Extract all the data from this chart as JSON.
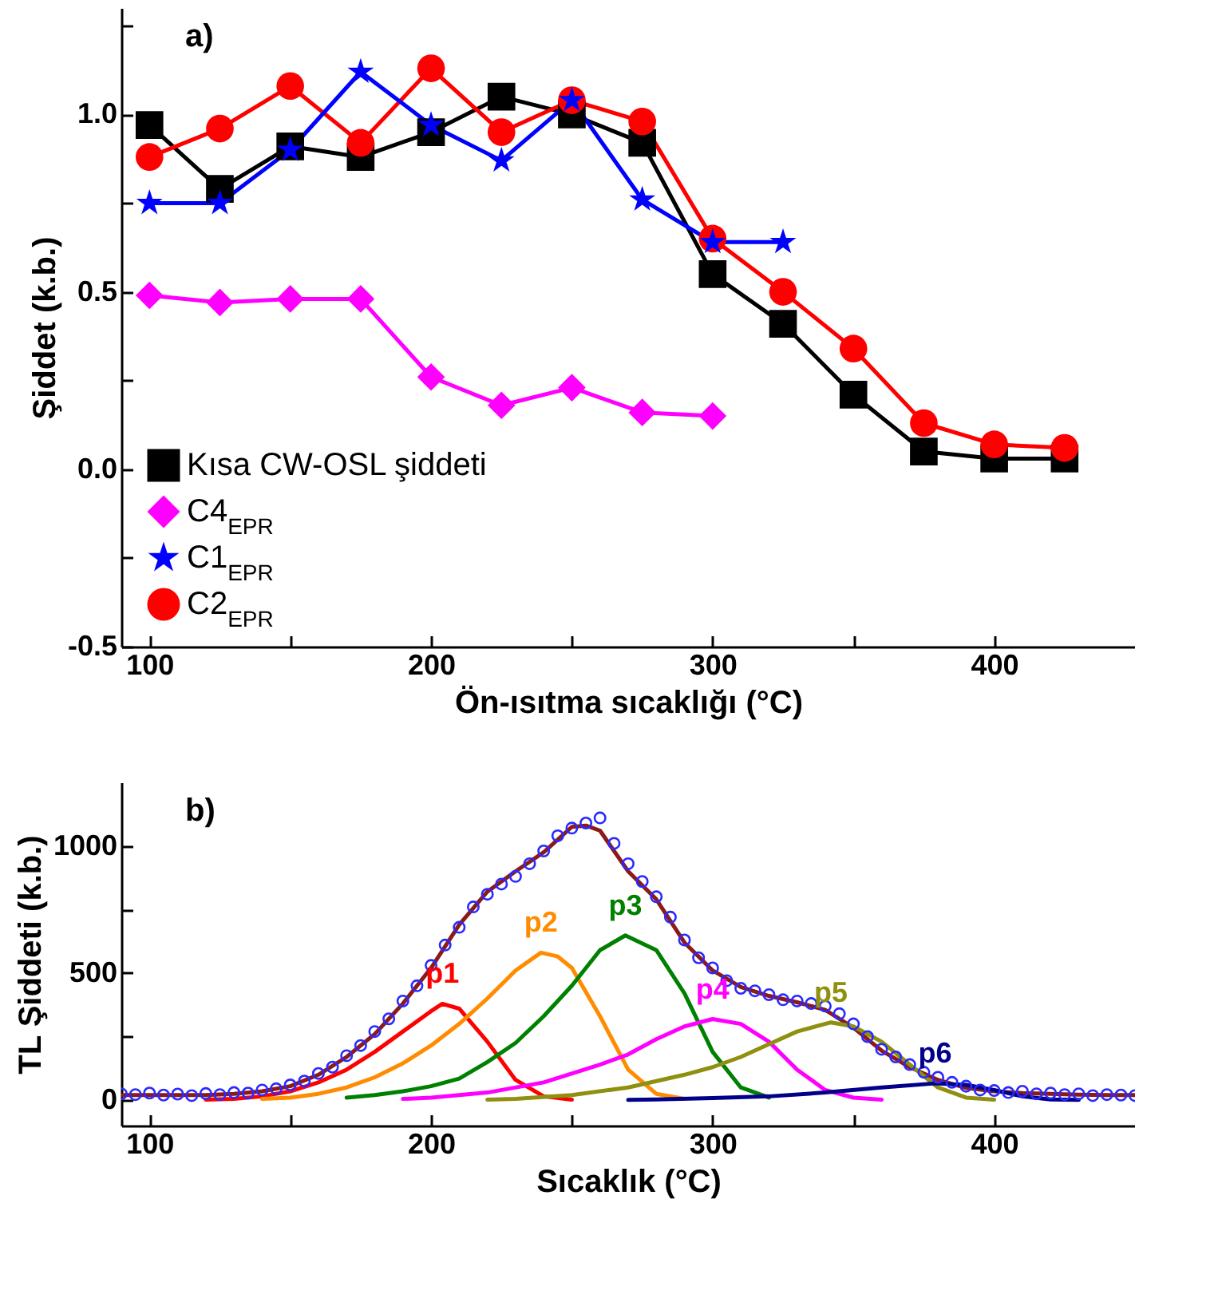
{
  "chart_data": [
    {
      "type": "line",
      "xlabel": "Ön-ısıtma sıcaklığı (°C)",
      "ylabel": "Şiddet (k.b.)",
      "annotations": [
        "a)"
      ],
      "x": [
        100,
        125,
        150,
        175,
        200,
        225,
        250,
        275,
        300,
        325,
        350,
        375,
        400,
        425
      ],
      "xlim": [
        90,
        450
      ],
      "xticks": [
        100,
        {
          "value": 150,
          "label": null
        },
        200,
        {
          "value": 250,
          "label": null
        },
        300,
        {
          "value": 350,
          "label": null
        },
        400
      ],
      "ylim": [
        -0.5,
        1.3
      ],
      "yticks": [
        -0.5,
        {
          "value": -0.25,
          "label": null
        },
        {
          "value": 0,
          "label": "0.0"
        },
        {
          "value": 0.25,
          "label": null
        },
        0.5,
        {
          "value": 0.75,
          "label": null
        },
        {
          "value": 1,
          "label": "1.0"
        },
        {
          "value": 1.25,
          "label": null
        }
      ],
      "grid": false,
      "legend": "bottom left",
      "line_style": "solid",
      "series": [
        {
          "name": "Kısa CW-OSL şiddeti",
          "color": "#000000",
          "marker": "square",
          "values": [
            0.97,
            0.79,
            0.91,
            0.88,
            0.95,
            1.05,
            1.0,
            0.92,
            0.55,
            0.41,
            0.21,
            0.05,
            0.03,
            0.03
          ]
        },
        {
          "name": "C4$_{EPR}$",
          "color": "#ff00ff",
          "marker": "diamond",
          "values": [
            0.49,
            0.47,
            0.48,
            0.48,
            0.26,
            0.18,
            0.23,
            0.16,
            0.15,
            null,
            null,
            null,
            null,
            null
          ]
        },
        {
          "name": "C1$_{EPR}$",
          "color": "#0000ff",
          "marker": "star",
          "values": [
            0.75,
            0.75,
            0.9,
            1.12,
            0.97,
            0.87,
            1.04,
            0.76,
            0.64,
            0.64,
            null,
            null,
            null,
            null
          ]
        },
        {
          "name": "C2$_{EPR}$",
          "color": "#ff0000",
          "marker": "circle",
          "values": [
            0.88,
            0.96,
            1.08,
            0.92,
            1.13,
            0.95,
            1.04,
            0.98,
            0.65,
            0.5,
            0.34,
            0.13,
            0.07,
            0.06
          ]
        }
      ]
    },
    {
      "type": "line",
      "xlabel": "Sıcaklık (°C)",
      "ylabel": "TL Şiddeti (k.b.)",
      "annotations": [
        "b)"
      ],
      "xlim": [
        90,
        450
      ],
      "xticks": [
        100,
        {
          "value": 150,
          "label": null
        },
        200,
        {
          "value": 250,
          "label": null
        },
        300,
        {
          "value": 350,
          "label": null
        },
        400
      ],
      "ylim": [
        -100,
        1250
      ],
      "yticks": [
        0,
        {
          "value": 250,
          "label": null
        },
        500,
        {
          "value": 750,
          "label": null
        },
        1000
      ],
      "grid": false,
      "legend": false,
      "series": [
        {
          "type": "scatter",
          "color": "#2a2aff",
          "marker": "circle",
          "x": [
            90,
            95,
            100,
            105,
            110,
            115,
            120,
            125,
            130,
            135,
            140,
            145,
            150,
            155,
            160,
            165,
            170,
            175,
            180,
            185,
            190,
            195,
            200,
            205,
            210,
            215,
            220,
            225,
            230,
            235,
            240,
            245,
            250,
            255,
            260,
            265,
            270,
            275,
            280,
            285,
            290,
            295,
            300,
            305,
            310,
            315,
            320,
            325,
            330,
            335,
            340,
            345,
            350,
            355,
            360,
            365,
            370,
            375,
            380,
            385,
            390,
            395,
            400,
            405,
            410,
            415,
            420,
            425,
            430,
            435,
            440,
            445,
            450
          ],
          "values": [
            25,
            22,
            28,
            20,
            24,
            18,
            26,
            22,
            30,
            28,
            40,
            45,
            60,
            75,
            105,
            130,
            175,
            215,
            270,
            320,
            390,
            450,
            530,
            610,
            680,
            760,
            810,
            850,
            880,
            930,
            980,
            1040,
            1070,
            1090,
            1110,
            1010,
            930,
            860,
            800,
            720,
            630,
            560,
            520,
            470,
            440,
            430,
            415,
            395,
            390,
            380,
            370,
            340,
            300,
            250,
            200,
            170,
            140,
            110,
            90,
            70,
            55,
            40,
            38,
            30,
            35,
            25,
            28,
            22,
            25,
            18,
            22,
            20,
            18
          ]
        },
        {
          "color": "#8b1a1a",
          "marker": "none",
          "x": [
            90,
            100,
            110,
            120,
            130,
            140,
            150,
            160,
            170,
            180,
            190,
            200,
            210,
            220,
            230,
            240,
            250,
            255,
            260,
            270,
            280,
            290,
            300,
            310,
            320,
            330,
            340,
            350,
            360,
            370,
            380,
            390,
            400,
            410,
            420,
            430,
            440,
            450
          ],
          "values": [
            20,
            20,
            20,
            20,
            25,
            35,
            55,
            100,
            170,
            260,
            380,
            520,
            690,
            820,
            900,
            975,
            1075,
            1080,
            1060,
            900,
            790,
            620,
            510,
            445,
            410,
            385,
            355,
            285,
            195,
            130,
            80,
            48,
            35,
            28,
            25,
            22,
            20,
            20
          ]
        },
        {
          "name": "p1",
          "color": "#ff0000",
          "marker": "none",
          "x": [
            120,
            130,
            140,
            150,
            160,
            170,
            180,
            190,
            200,
            204,
            210,
            220,
            230,
            240,
            250
          ],
          "values": [
            2,
            5,
            15,
            35,
            70,
            120,
            190,
            270,
            350,
            379,
            360,
            230,
            80,
            15,
            2
          ]
        },
        {
          "name": "p2",
          "color": "#ff8c00",
          "marker": "none",
          "x": [
            140,
            150,
            160,
            170,
            180,
            190,
            200,
            210,
            220,
            230,
            239,
            245,
            250,
            260,
            270,
            280,
            290
          ],
          "values": [
            5,
            10,
            25,
            50,
            90,
            145,
            215,
            300,
            400,
            510,
            580,
            565,
            520,
            330,
            120,
            25,
            5
          ]
        },
        {
          "name": "p3",
          "color": "#008000",
          "marker": "none",
          "x": [
            170,
            180,
            190,
            200,
            210,
            220,
            230,
            240,
            250,
            260,
            269,
            280,
            290,
            300,
            310,
            320
          ],
          "values": [
            10,
            20,
            35,
            55,
            85,
            150,
            225,
            330,
            450,
            590,
            648,
            590,
            420,
            190,
            50,
            10
          ]
        },
        {
          "name": "p4",
          "color": "#ff00ff",
          "marker": "none",
          "x": [
            190,
            200,
            220,
            240,
            260,
            270,
            280,
            290,
            300,
            310,
            320,
            330,
            340,
            350,
            360
          ],
          "values": [
            5,
            10,
            30,
            70,
            140,
            180,
            240,
            290,
            319,
            300,
            230,
            120,
            40,
            10,
            2
          ]
        },
        {
          "name": "p5",
          "color": "#8f8f10",
          "marker": "none",
          "x": [
            220,
            230,
            250,
            270,
            290,
            300,
            310,
            320,
            330,
            342,
            350,
            360,
            370,
            380,
            390,
            400
          ],
          "values": [
            2,
            5,
            20,
            50,
            100,
            130,
            170,
            220,
            270,
            306,
            290,
            230,
            140,
            50,
            10,
            2
          ]
        },
        {
          "name": "p6",
          "color": "#00008b",
          "marker": "none",
          "x": [
            270,
            280,
            300,
            320,
            340,
            360,
            379,
            390,
            400,
            410,
            420,
            430
          ],
          "values": [
            1,
            3,
            8,
            15,
            30,
            50,
            66,
            60,
            40,
            15,
            3,
            1
          ]
        }
      ]
    }
  ]
}
